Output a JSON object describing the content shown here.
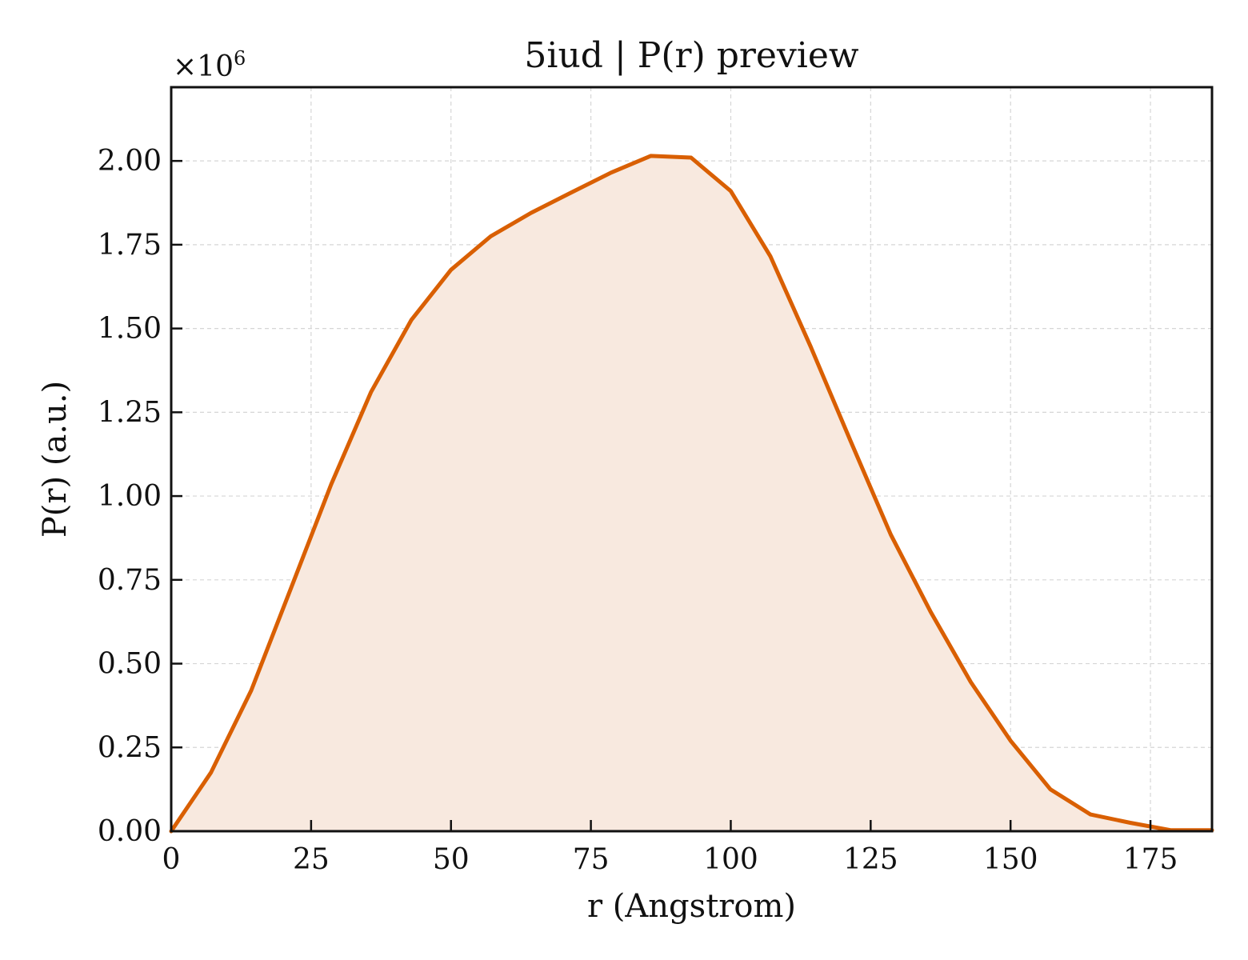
{
  "chart_data": {
    "type": "area",
    "title": "5iud | P(r) preview",
    "xlabel": "r (Angstrom)",
    "ylabel": "P(r) (a.u.)",
    "y_scale_prefix": "×10",
    "y_scale_exponent": "6",
    "xlim": [
      0,
      186
    ],
    "ylim": [
      0,
      2.22
    ],
    "x_ticks": [
      0,
      25,
      50,
      75,
      100,
      125,
      150,
      175
    ],
    "x_tick_labels": [
      "0",
      "25",
      "50",
      "75",
      "100",
      "125",
      "150",
      "175"
    ],
    "y_ticks": [
      0,
      0.25,
      0.5,
      0.75,
      1.0,
      1.25,
      1.5,
      1.75,
      2.0
    ],
    "y_tick_labels": [
      "0.00",
      "0.25",
      "0.50",
      "0.75",
      "1.00",
      "1.25",
      "1.50",
      "1.75",
      "2.00"
    ],
    "grid": true,
    "line_color": "#d95f02",
    "fill_color": "#f8e9df",
    "series": [
      {
        "x": [
          0,
          7.1,
          14.3,
          21.4,
          28.6,
          35.7,
          42.9,
          50.0,
          57.1,
          64.3,
          71.4,
          78.6,
          85.7,
          92.9,
          100.0,
          107.1,
          114.3,
          121.4,
          128.6,
          135.7,
          142.9,
          150.0,
          157.1,
          164.3,
          171.4,
          178.6,
          186.0
        ],
        "y": [
          0.0,
          0.175,
          0.42,
          0.725,
          1.035,
          1.31,
          1.525,
          1.675,
          1.775,
          1.845,
          1.905,
          1.965,
          2.015,
          2.01,
          1.91,
          1.715,
          1.445,
          1.165,
          0.885,
          0.655,
          0.445,
          0.27,
          0.125,
          0.05,
          0.025,
          0.003,
          0.003
        ]
      }
    ]
  }
}
